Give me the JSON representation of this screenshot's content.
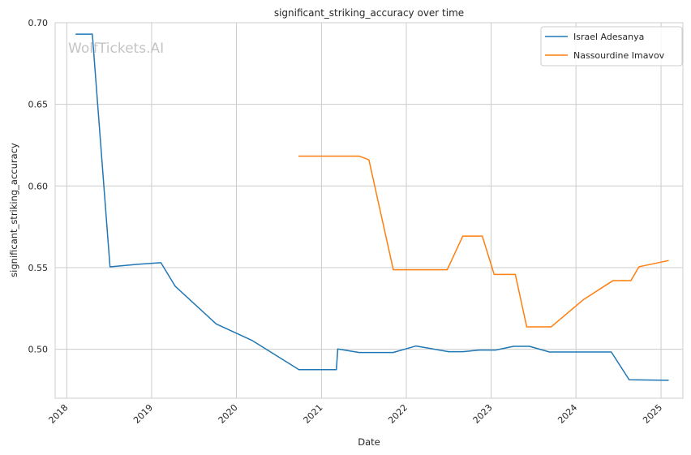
{
  "chart_data": {
    "type": "line",
    "title": "significant_striking_accuracy over time",
    "xlabel": "Date",
    "ylabel": "significant_striking_accuracy",
    "watermark": "WolfTickets.AI",
    "grid": true,
    "legend_position": "top-right",
    "x_ticks": [
      "2018",
      "2019",
      "2020",
      "2021",
      "2022",
      "2023",
      "2024",
      "2025"
    ],
    "y_ticks": [
      "0.50",
      "0.55",
      "0.60",
      "0.65",
      "0.70"
    ],
    "xlim": [
      "2017-11-12",
      "2025-04-05"
    ],
    "ylim": [
      0.47,
      0.7
    ],
    "series": [
      {
        "name": "Israel Adesanya",
        "color": "#1f77b4",
        "points": [
          [
            "2018-02-10",
            0.693
          ],
          [
            "2018-04-21",
            0.693
          ],
          [
            "2018-07-06",
            0.5505
          ],
          [
            "2018-11-02",
            0.552
          ],
          [
            "2019-02-10",
            0.553
          ],
          [
            "2019-04-13",
            0.5385
          ],
          [
            "2019-10-06",
            0.5155
          ],
          [
            "2020-03-07",
            0.5055
          ],
          [
            "2020-09-26",
            0.4875
          ],
          [
            "2021-03-06",
            0.4875
          ],
          [
            "2021-03-12",
            0.5002
          ],
          [
            "2021-06-12",
            0.498
          ],
          [
            "2021-11-05",
            0.498
          ],
          [
            "2022-02-12",
            0.502
          ],
          [
            "2022-07-02",
            0.4985
          ],
          [
            "2022-09-01",
            0.4985
          ],
          [
            "2022-11-12",
            0.4995
          ],
          [
            "2023-01-20",
            0.4995
          ],
          [
            "2023-04-08",
            0.5018
          ],
          [
            "2023-06-15",
            0.5018
          ],
          [
            "2023-09-09",
            0.4983
          ],
          [
            "2024-06-01",
            0.4983
          ],
          [
            "2024-08-17",
            0.4813
          ],
          [
            "2025-02-01",
            0.481
          ]
        ]
      },
      {
        "name": "Nassourdine Imavov",
        "color": "#ff7f0e",
        "points": [
          [
            "2020-09-26",
            0.6183
          ],
          [
            "2021-06-12",
            0.6183
          ],
          [
            "2021-07-24",
            0.616
          ],
          [
            "2021-11-06",
            0.5487
          ],
          [
            "2022-06-26",
            0.5487
          ],
          [
            "2022-09-01",
            0.5693
          ],
          [
            "2022-11-24",
            0.5693
          ],
          [
            "2023-01-14",
            0.5458
          ],
          [
            "2023-04-15",
            0.5458
          ],
          [
            "2023-06-03",
            0.5137
          ],
          [
            "2023-09-16",
            0.5137
          ],
          [
            "2024-02-03",
            0.5305
          ],
          [
            "2024-06-08",
            0.542
          ],
          [
            "2024-08-24",
            0.542
          ],
          [
            "2024-09-28",
            0.5505
          ],
          [
            "2025-02-01",
            0.5543
          ]
        ]
      }
    ]
  }
}
